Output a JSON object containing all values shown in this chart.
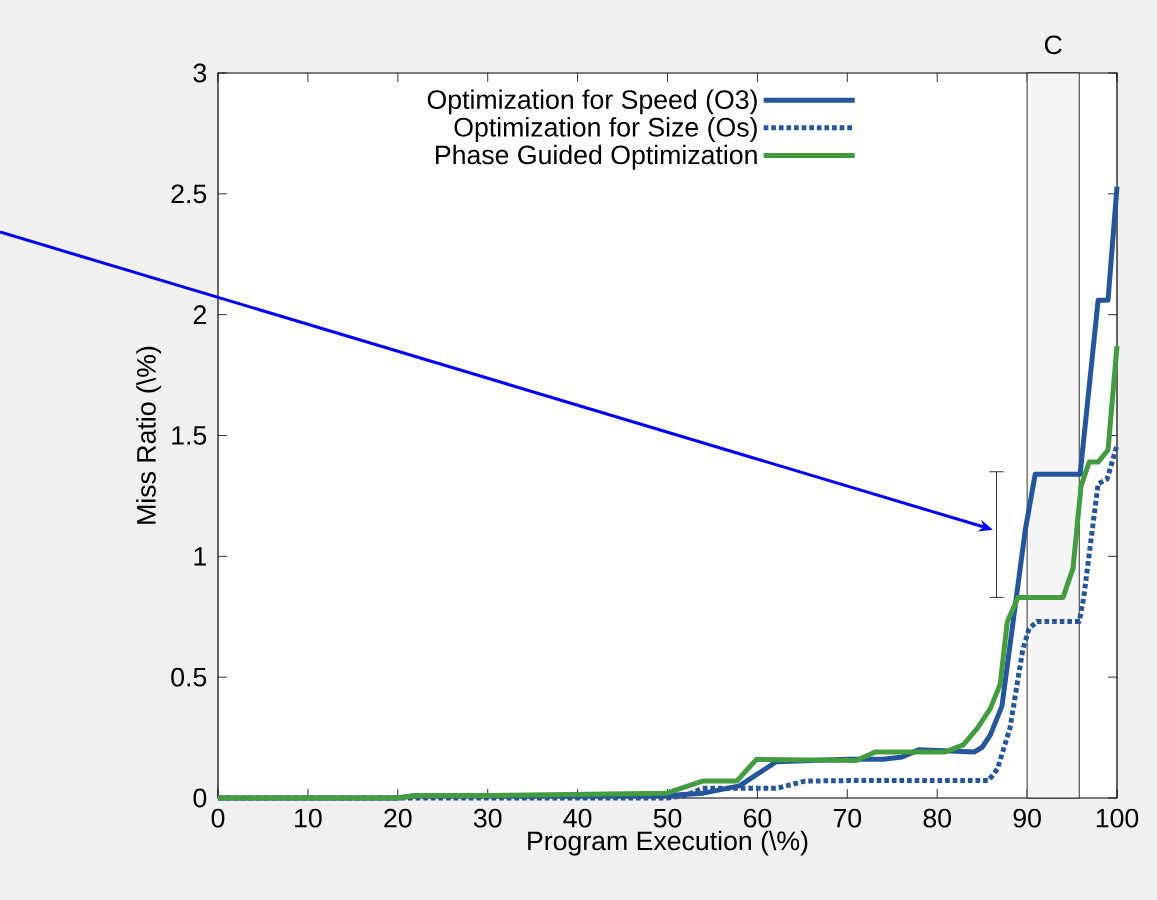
{
  "chart_data": {
    "type": "line",
    "xlabel": "Program Execution (\\%)",
    "ylabel": "Miss Ratio (\\%)",
    "xlim": [
      0,
      100
    ],
    "ylim": [
      0,
      3
    ],
    "xticks": [
      0,
      10,
      20,
      30,
      40,
      50,
      60,
      70,
      80,
      90,
      100
    ],
    "yticks": [
      0,
      0.5,
      1,
      1.5,
      2,
      2.5,
      3
    ],
    "grid": false,
    "legend": "top",
    "marker": "none",
    "bands": [
      {
        "axis": "x",
        "from": 90,
        "to": 95.8,
        "label": "C",
        "color": "#f5f5f5"
      }
    ],
    "series": [
      {
        "name": "Optimization for Speed (O3)",
        "color": "#25559a",
        "line_style": "solid",
        "x": [
          0,
          20,
          22,
          30,
          50,
          54,
          58,
          62.1,
          70,
          74.0,
          76.1,
          78.0,
          84.1,
          85.0,
          85.9,
          87.2,
          88.8,
          89.8,
          90.9,
          95.9,
          97.9,
          99.0,
          100
        ],
        "values": [
          0,
          0,
          0.01,
          0.01,
          0.01,
          0.02,
          0.05,
          0.15,
          0.16,
          0.16,
          0.17,
          0.2,
          0.19,
          0.21,
          0.26,
          0.38,
          0.83,
          1.11,
          1.34,
          1.34,
          2.06,
          2.06,
          2.53
        ]
      },
      {
        "name": "Optimization for Size (Os)",
        "color": "#25559a",
        "line_style": "dotted",
        "x": [
          0,
          50,
          52,
          53.9,
          62.1,
          65.3,
          70,
          85.7,
          86.7,
          88.1,
          89.5,
          90.2,
          91.1,
          95.8,
          96.3,
          97.9,
          98.9,
          100
        ],
        "values": [
          0,
          0,
          0.01,
          0.04,
          0.04,
          0.07,
          0.072,
          0.072,
          0.12,
          0.29,
          0.61,
          0.7,
          0.73,
          0.73,
          0.83,
          1.3,
          1.32,
          1.46
        ]
      },
      {
        "name": "Phase Guided Optimization",
        "color": "#449c41",
        "line_style": "solid",
        "x": [
          0,
          20,
          22,
          30,
          49.9,
          53.9,
          57.7,
          59.9,
          71.0,
          73.1,
          80.8,
          82.9,
          84.5,
          85.9,
          87.0,
          87.8,
          89.0,
          94.0,
          95.1,
          96.0,
          96.9,
          97.9,
          99.0,
          100
        ],
        "values": [
          0,
          0,
          0.01,
          0.01,
          0.02,
          0.07,
          0.07,
          0.16,
          0.155,
          0.19,
          0.19,
          0.22,
          0.29,
          0.37,
          0.47,
          0.73,
          0.83,
          0.83,
          0.95,
          1.29,
          1.39,
          1.39,
          1.44,
          1.87
        ]
      }
    ]
  }
}
